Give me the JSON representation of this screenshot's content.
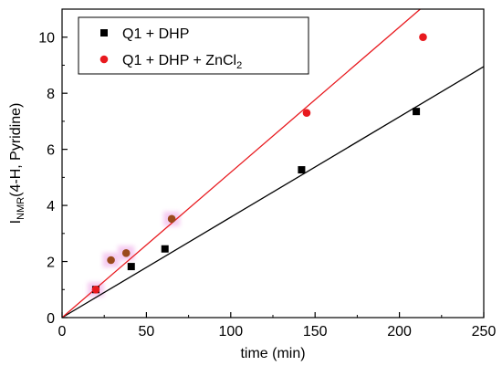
{
  "chart_data": {
    "type": "scatter",
    "xlabel": "time (min)",
    "ylabel_main": "I",
    "ylabel_sub": "NMR",
    "ylabel_rest": "(4-H, Pyridine)",
    "xlim": [
      0,
      250
    ],
    "ylim": [
      0,
      11
    ],
    "xticks": [
      0,
      50,
      100,
      150,
      200,
      250
    ],
    "yticks": [
      0,
      2,
      4,
      6,
      8,
      10
    ],
    "legend_position": "top-left",
    "series": [
      {
        "name": "Q1 + DHP",
        "name_main": "Q1 + DHP",
        "name_sub": "",
        "name_tail": "",
        "marker": "square",
        "color": "#000000",
        "x": [
          20,
          41,
          61,
          142,
          210
        ],
        "y": [
          1.0,
          1.82,
          2.45,
          5.27,
          7.35
        ],
        "fit": {
          "slope": 0.0358,
          "intercept": 0
        }
      },
      {
        "name": "Q1 + DHP + ZnCl2",
        "name_main": "Q1 + DHP + ZnCl",
        "name_sub": "2",
        "name_tail": "",
        "marker": "circle",
        "color": "#e8191e",
        "x": [
          20,
          29,
          38,
          65,
          145,
          214
        ],
        "y": [
          1.0,
          2.05,
          2.3,
          3.52,
          7.3,
          10.0
        ],
        "fit": {
          "slope": 0.0518,
          "intercept": 0
        }
      }
    ]
  }
}
